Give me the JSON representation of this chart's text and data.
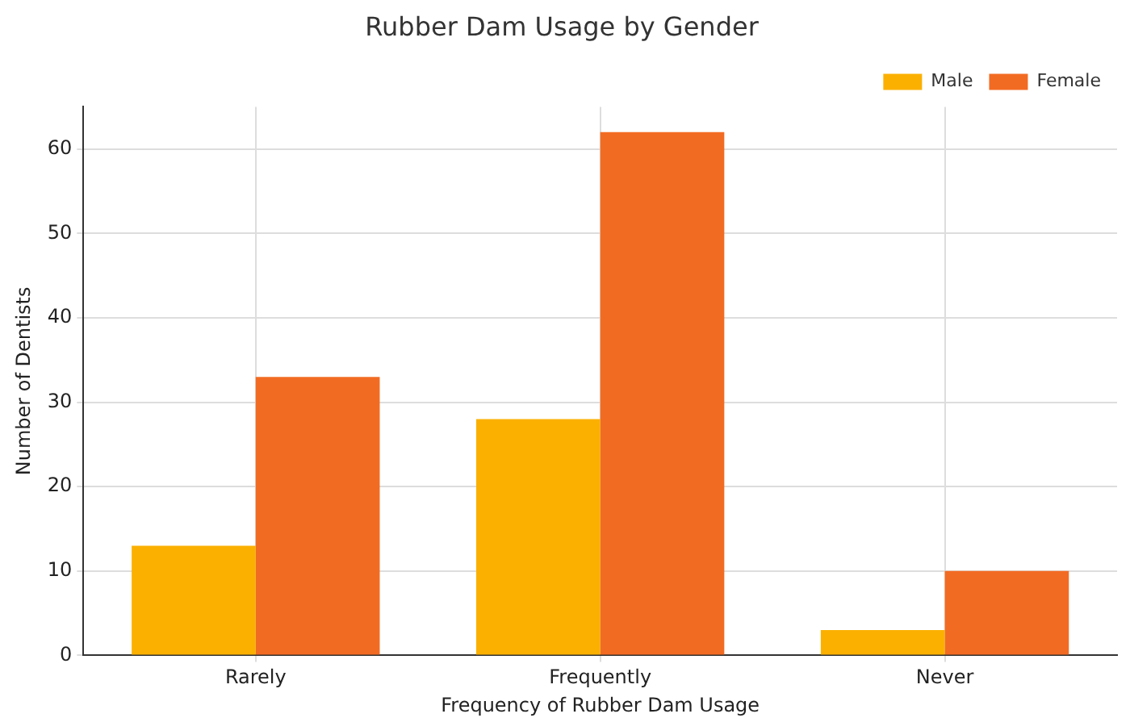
{
  "chart_data": {
    "type": "bar",
    "title": "Rubber Dam Usage by Gender",
    "xlabel": "Frequency of Rubber Dam Usage",
    "ylabel": "Number of Dentists",
    "categories": [
      "Rarely",
      "Frequently",
      "Never"
    ],
    "series": [
      {
        "name": "Male",
        "color": "#fbb000",
        "values": [
          13,
          28,
          3
        ]
      },
      {
        "name": "Female",
        "color": "#f26b22",
        "values": [
          33,
          62,
          10
        ]
      }
    ],
    "ylim": [
      0,
      65
    ],
    "yticks": [
      0,
      10,
      20,
      30,
      40,
      50,
      60
    ],
    "grid": true,
    "legend": "top right"
  }
}
